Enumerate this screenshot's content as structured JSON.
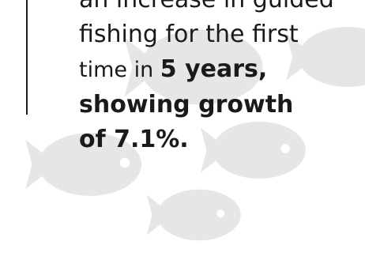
{
  "colors": {
    "fish": "#e6e6e6",
    "text": "#1a1a1a",
    "rule": "#1f1f1f",
    "background": "#ffffff"
  },
  "text": {
    "line1": "an increase in guided",
    "line2": "fishing for the first",
    "line3_regular": "time in ",
    "line3_bold": "5 years,",
    "line4": "showing growth",
    "line5": "of 7.1%."
  },
  "decorations": [
    "fish-icon",
    "fish-icon",
    "fish-icon",
    "fish-icon",
    "fish-icon"
  ]
}
